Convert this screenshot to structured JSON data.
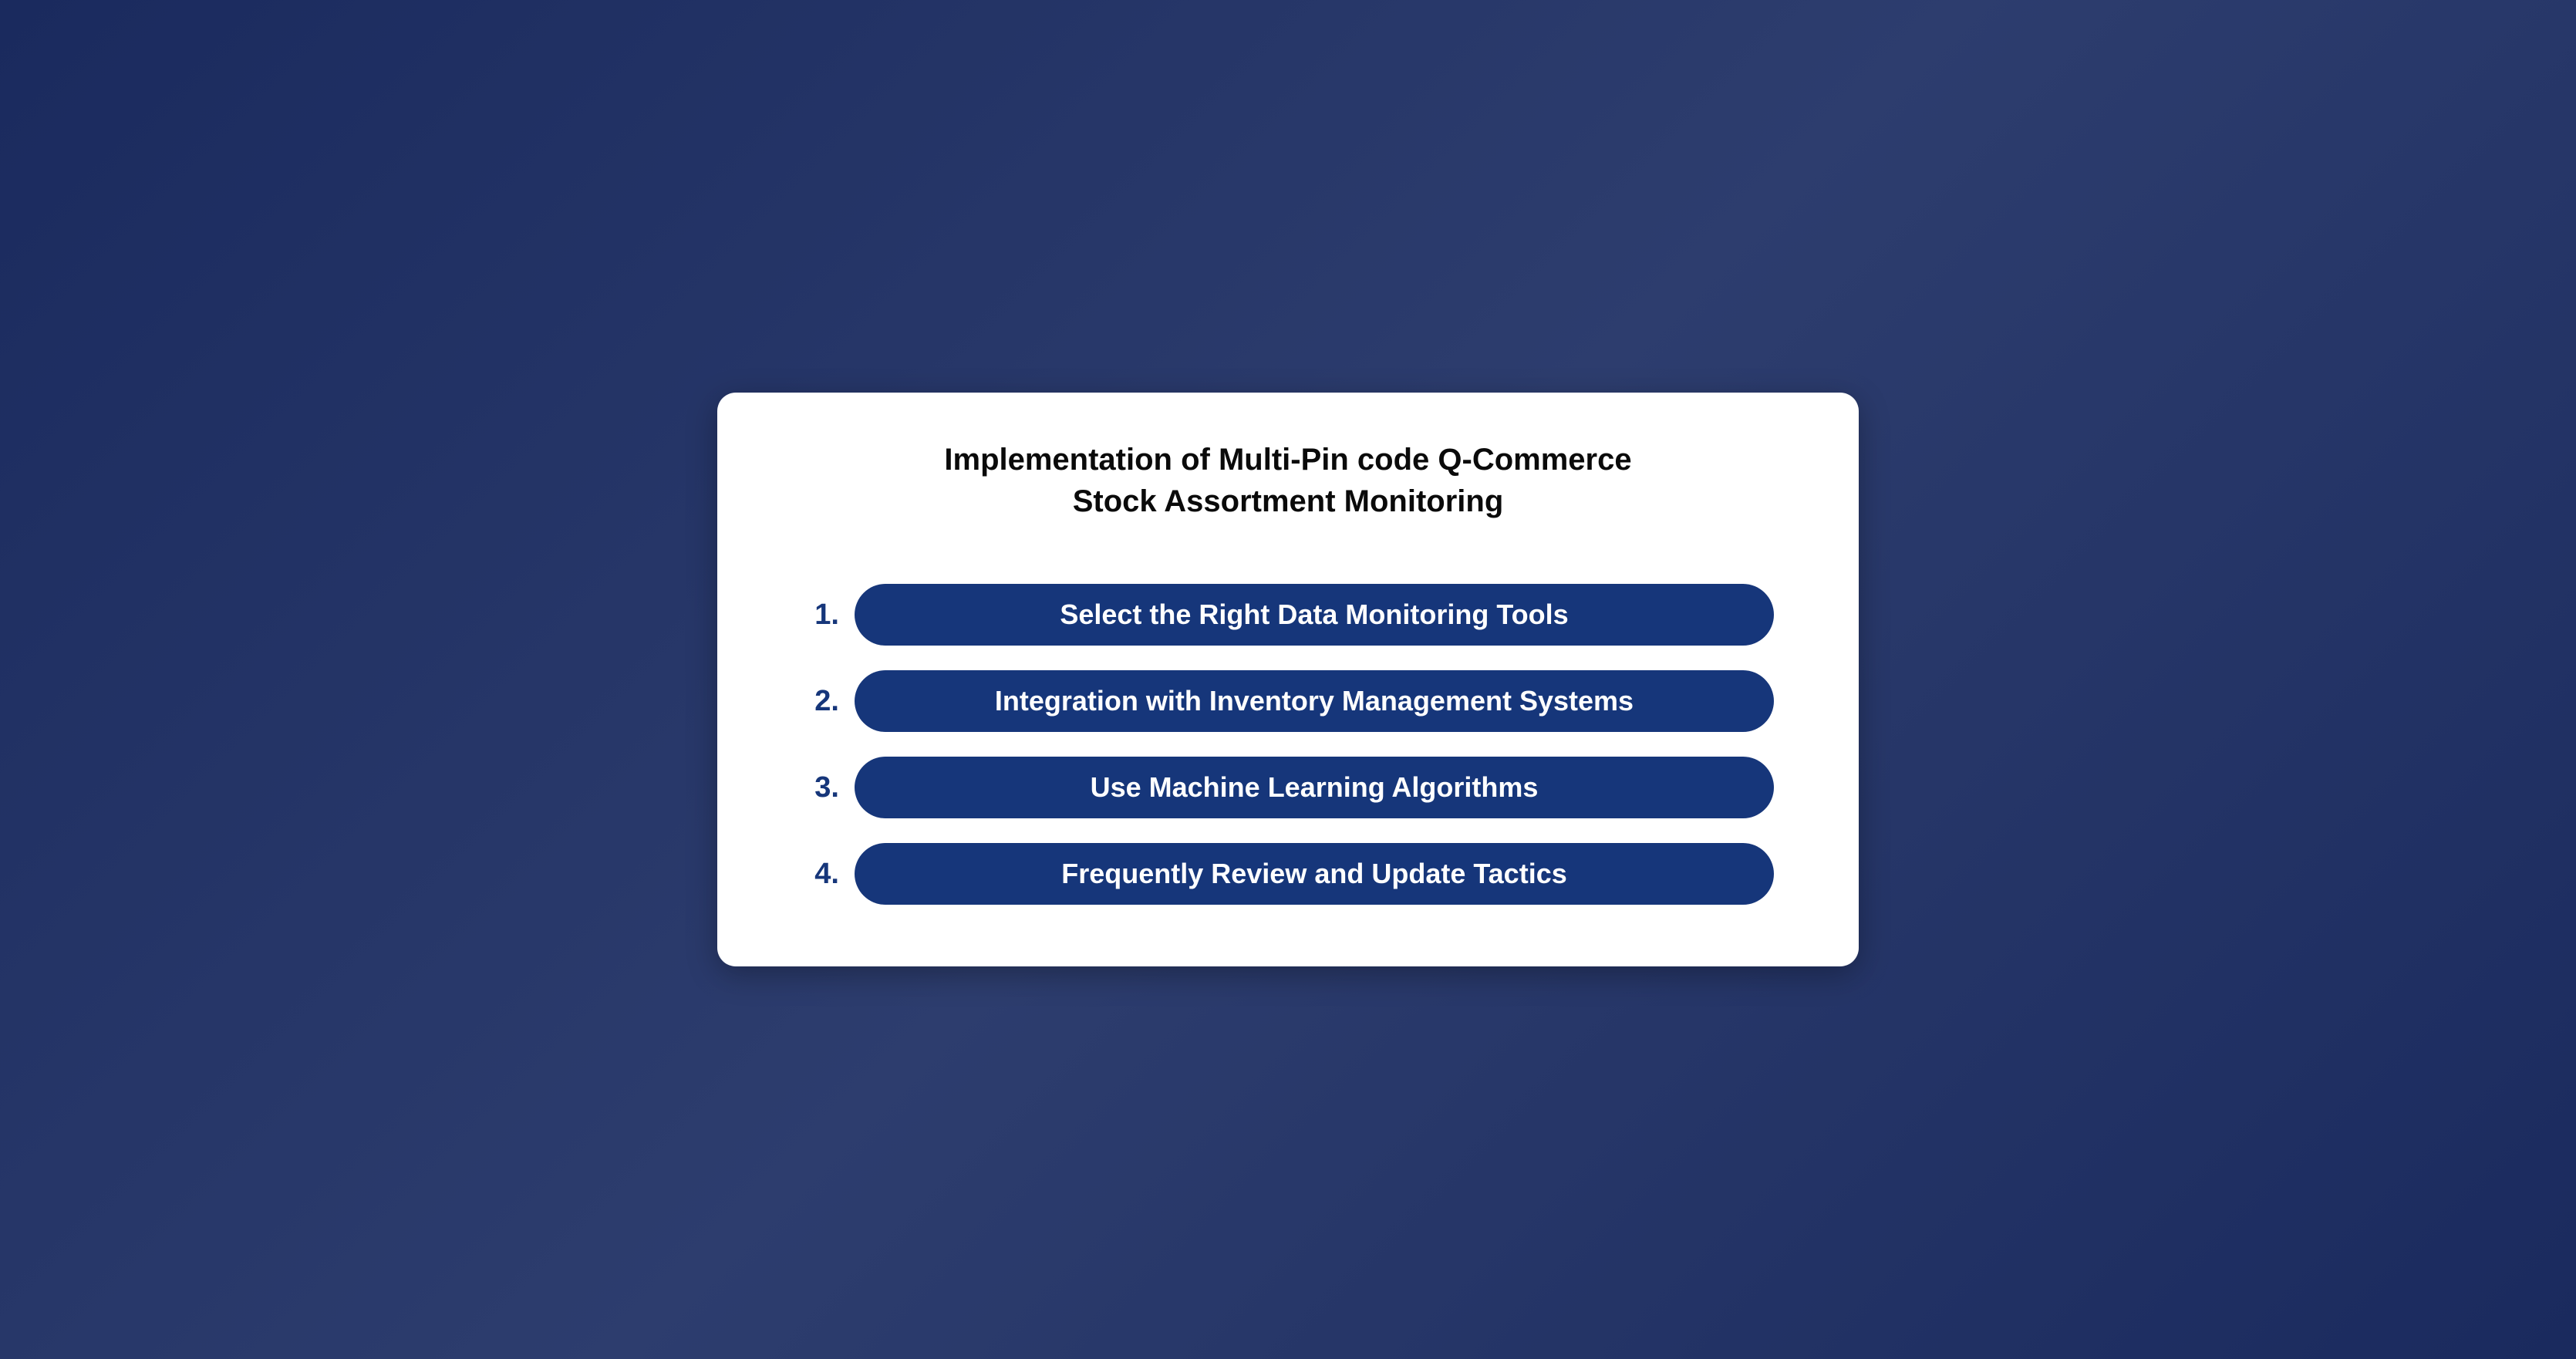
{
  "card": {
    "title": "Implementation of Multi-Pin code Q-Commerce\nStock Assortment Monitoring",
    "background_color": "#ffffff",
    "border_radius": 24,
    "title_color": "#0a0a0a",
    "title_fontsize": 40,
    "title_fontweight": 700
  },
  "page": {
    "background_gradient": [
      "#1a2a5e",
      "#2d3d6e",
      "#1a2a5e"
    ]
  },
  "list": {
    "number_color": "#16367a",
    "number_fontsize": 38,
    "number_fontweight": 700,
    "pill_background": "#16367a",
    "pill_text_color": "#ffffff",
    "pill_fontsize": 36,
    "pill_fontweight": 600,
    "pill_border_radius": 999,
    "gap": 32,
    "items": [
      {
        "number": "1.",
        "label": "Select the Right Data Monitoring Tools"
      },
      {
        "number": "2.",
        "label": "Integration with Inventory Management Systems"
      },
      {
        "number": "3.",
        "label": "Use Machine Learning Algorithms"
      },
      {
        "number": "4.",
        "label": "Frequently Review and Update Tactics"
      }
    ]
  }
}
